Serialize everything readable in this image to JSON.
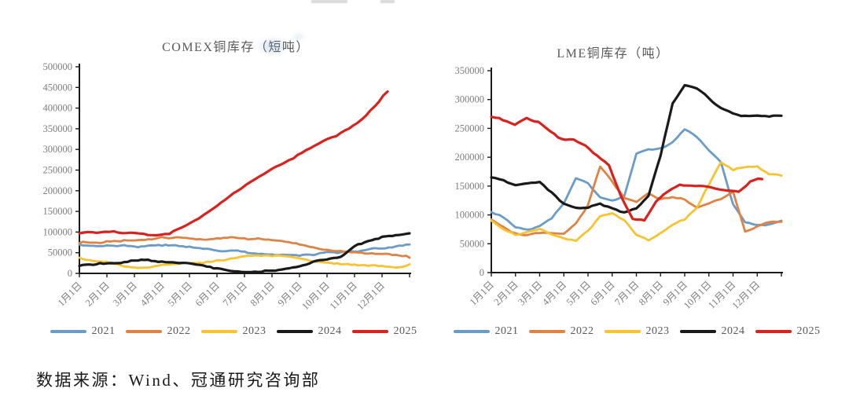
{
  "page": {
    "background": "#ffffff",
    "source_note": "数据来源：Wind、冠通研究咨询部"
  },
  "axis_style": {
    "axis_color": "#1a1a1a",
    "tick_label_color": "#7d7d7d",
    "title_color": "#5a5a5a"
  },
  "chart_data": [
    {
      "type": "line",
      "title": "COMEX铜库存（短吨）",
      "xlabel": "",
      "ylabel": "",
      "unit": "短吨",
      "ylim": [
        0,
        500000
      ],
      "ytick_step": 50000,
      "x_tick_labels": [
        "1月1日",
        "2月1日",
        "3月1日",
        "4月1日",
        "5月1日",
        "6月1日",
        "7月1日",
        "8月1日",
        "9月1日",
        "10月1日",
        "11月1日",
        "12月1日"
      ],
      "grid": false,
      "legend_position": "bottom",
      "series": [
        {
          "name": "2021",
          "color": "#6B9BC7",
          "end_month": 12,
          "values": [
            70000,
            69000,
            67000,
            66000,
            66000,
            67000,
            69000,
            68000,
            66000,
            62000,
            58000,
            55000,
            52000,
            48000,
            46000,
            44000,
            45000,
            46000,
            48000,
            50000,
            53000,
            57000,
            60000,
            64000,
            70000
          ]
        },
        {
          "name": "2022",
          "color": "#DF8344",
          "end_month": 12,
          "values": [
            73000,
            76000,
            79000,
            82000,
            84000,
            86000,
            87000,
            88000,
            86000,
            84000,
            85000,
            86000,
            84000,
            81000,
            77000,
            72000,
            66000,
            58000,
            52000,
            49000,
            47000,
            45000,
            43000,
            40000,
            38000
          ]
        },
        {
          "name": "2023",
          "color": "#F7C331",
          "end_month": 12,
          "values": [
            38000,
            34000,
            30000,
            22000,
            18000,
            19000,
            22000,
            25000,
            27000,
            30000,
            34000,
            40000,
            46000,
            48000,
            47000,
            46000,
            40000,
            34000,
            30000,
            27000,
            25000,
            22000,
            20000,
            19000,
            22000
          ]
        },
        {
          "name": "2024",
          "color": "#1A1A1A",
          "end_month": 12,
          "values": [
            18000,
            22000,
            26000,
            29000,
            31000,
            33000,
            33000,
            30000,
            26000,
            20000,
            14000,
            10000,
            8000,
            8000,
            10000,
            15000,
            22000,
            30000,
            38000,
            44000,
            68000,
            78000,
            88000,
            92000,
            97000
          ]
        },
        {
          "name": "2025",
          "color": "#D9211E",
          "end_month": 11.2,
          "values": [
            97000,
            98000,
            100000,
            99000,
            96000,
            95000,
            93000,
            94000,
            108000,
            126000,
            145000,
            168000,
            190000,
            212000,
            230000,
            248000,
            264000,
            282000,
            300000,
            316000,
            330000,
            347000,
            368000,
            400000,
            440000
          ]
        }
      ]
    },
    {
      "type": "line",
      "title": "LME铜库存（吨）",
      "xlabel": "",
      "ylabel": "",
      "unit": "吨",
      "ylim": [
        0,
        350000
      ],
      "ytick_step": 50000,
      "x_tick_labels": [
        "1月1日",
        "2月1日",
        "3月1日",
        "4月1日",
        "5月1日",
        "6月1日",
        "7月1日",
        "8月1日",
        "9月1日",
        "10月1日",
        "11月1日",
        "12月1日"
      ],
      "grid": false,
      "legend_position": "bottom",
      "series": [
        {
          "name": "2021",
          "color": "#6B9BC7",
          "end_month": 12,
          "values": [
            105000,
            96000,
            80000,
            76000,
            82000,
            95000,
            120000,
            165000,
            155000,
            128000,
            122000,
            130000,
            205000,
            212000,
            215000,
            228000,
            250000,
            238000,
            215000,
            195000,
            120000,
            88000,
            85000,
            86000,
            90000
          ]
        },
        {
          "name": "2022",
          "color": "#DF8344",
          "end_month": 12,
          "values": [
            92000,
            80000,
            70000,
            68000,
            72000,
            71000,
            70000,
            88000,
            120000,
            185000,
            160000,
            130000,
            125000,
            138000,
            128000,
            132000,
            125000,
            112000,
            118000,
            128000,
            140000,
            72000,
            80000,
            86000,
            88000
          ]
        },
        {
          "name": "2023",
          "color": "#F7C331",
          "end_month": 12,
          "values": [
            90000,
            75000,
            65000,
            68000,
            76000,
            65000,
            56000,
            52000,
            70000,
            95000,
            100000,
            88000,
            62000,
            53000,
            65000,
            80000,
            90000,
            110000,
            150000,
            188000,
            175000,
            180000,
            183000,
            170000,
            168000
          ]
        },
        {
          "name": "2024",
          "color": "#1A1A1A",
          "end_month": 12,
          "values": [
            165000,
            158000,
            148000,
            152000,
            155000,
            138000,
            118000,
            112000,
            113000,
            120000,
            112000,
            104000,
            110000,
            130000,
            200000,
            290000,
            322000,
            318000,
            300000,
            285000,
            274000,
            270000,
            271000,
            270000,
            272000
          ]
        },
        {
          "name": "2025",
          "color": "#D9211E",
          "end_month": 11.2,
          "values": [
            270000,
            263000,
            255000,
            268000,
            262000,
            245000,
            230000,
            228000,
            218000,
            200000,
            185000,
            130000,
            90000,
            88000,
            120000,
            140000,
            152000,
            150000,
            148000,
            143000,
            140000,
            138000,
            157000,
            162000
          ]
        }
      ]
    }
  ]
}
